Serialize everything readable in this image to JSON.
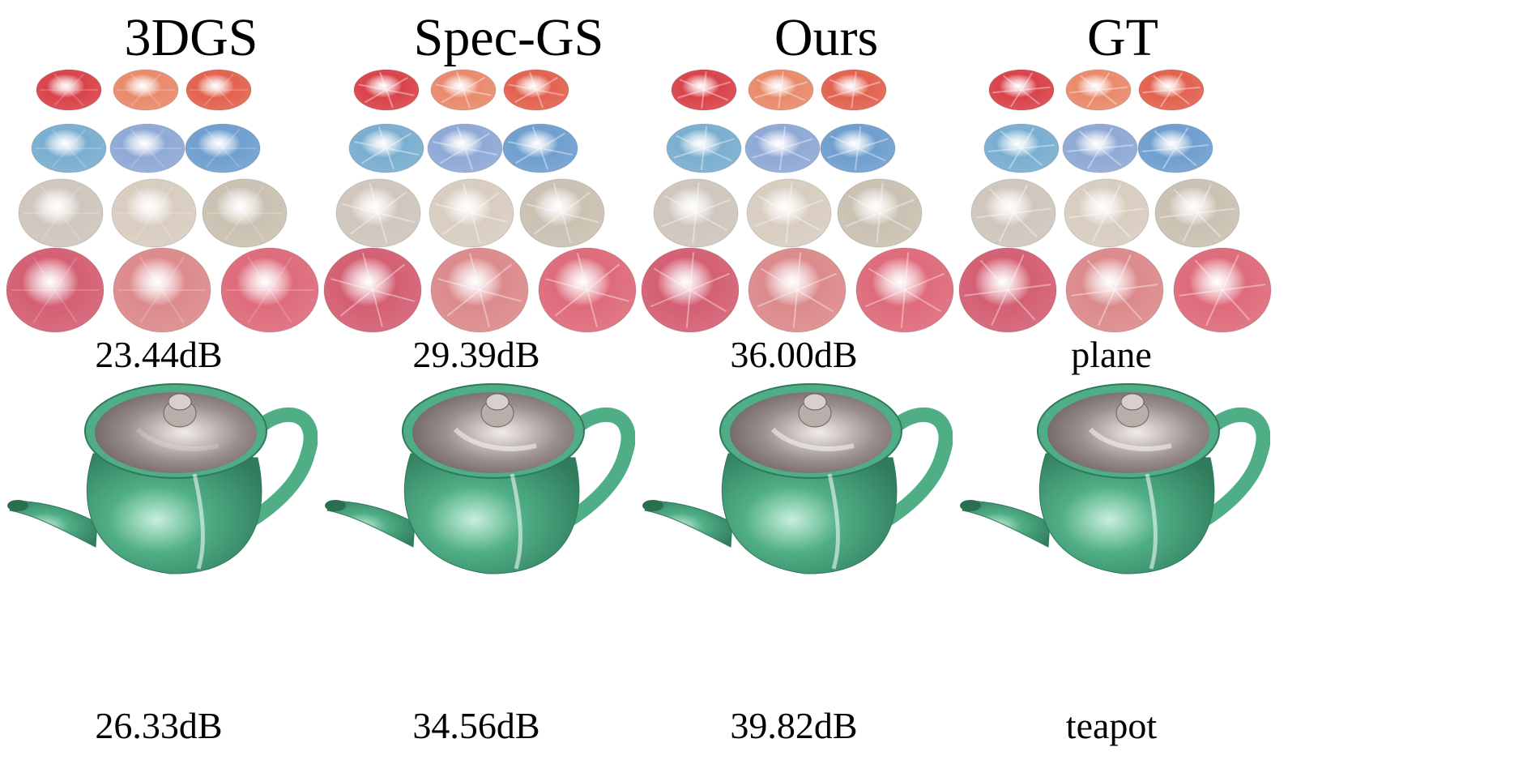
{
  "columns": [
    {
      "title": "3DGS",
      "plane_caption": "23.44dB",
      "teapot_caption": "26.33dB"
    },
    {
      "title": "Spec-GS",
      "plane_caption": "29.39dB",
      "teapot_caption": "34.56dB"
    },
    {
      "title": "Ours",
      "plane_caption": "36.00dB",
      "teapot_caption": "39.82dB"
    },
    {
      "title": "GT",
      "plane_caption": "plane",
      "teapot_caption": "teapot"
    }
  ],
  "colors": {
    "row1": [
      "#d9434a",
      "#e98a6c",
      "#e2624f"
    ],
    "row2": [
      "#7aaed0",
      "#8fa9d6",
      "#6f9fcf"
    ],
    "row3": [
      "#cfc6bd",
      "#d8cdbf",
      "#cbc1b2"
    ],
    "row4": [
      "#d45f73",
      "#dc8a8c",
      "#de6b7b"
    ],
    "teapot_body": "#4fae86",
    "teapot_lid": "#9a8f8c"
  }
}
